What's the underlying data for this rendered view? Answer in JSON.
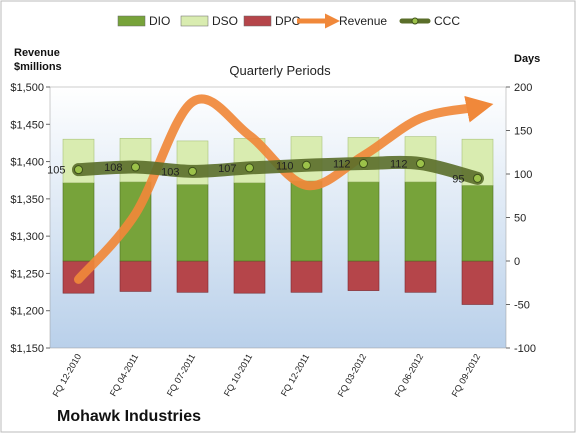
{
  "chart_data": {
    "type": "bar",
    "title": "",
    "subtitle": "Quarterly Periods",
    "company": "Mohawk Industries",
    "left_axis_label": "Revenue\n$millions",
    "right_axis_label": "Days",
    "categories": [
      "FQ 12-2010",
      "FQ 04-2011",
      "FQ 07-2011",
      "FQ 10-2011",
      "FQ 12-2011",
      "FQ 03-2012",
      "FQ 06-2012",
      "FQ 09-2012"
    ],
    "left_ylim": [
      1150,
      1500
    ],
    "left_ticks": [
      1150,
      1200,
      1250,
      1300,
      1350,
      1400,
      1450,
      1500
    ],
    "left_tick_labels": [
      "$1,150",
      "$1,200",
      "$1,250",
      "$1,300",
      "$1,350",
      "$1,400",
      "$1,450",
      "$1,500"
    ],
    "right_ylim": [
      -100,
      200
    ],
    "right_ticks": [
      -100,
      -50,
      0,
      50,
      100,
      150,
      200
    ],
    "right_tick_labels": [
      "-100",
      "-50",
      "0",
      "50",
      "100",
      "150",
      "200"
    ],
    "series": [
      {
        "name": "DIO",
        "axis": "right",
        "kind": "bar",
        "color": "#77a33a",
        "values": [
          90,
          91,
          88,
          90,
          92,
          91,
          91,
          87
        ]
      },
      {
        "name": "DSO",
        "axis": "right",
        "kind": "bar",
        "color": "#d9ecb0",
        "values": [
          50,
          50,
          50,
          51,
          51,
          51,
          52,
          53
        ]
      },
      {
        "name": "DPO",
        "axis": "right",
        "kind": "bar",
        "color": "#b5454a",
        "values": [
          -37,
          -35,
          -36,
          -37,
          -36,
          -34,
          -36,
          -50
        ]
      },
      {
        "name": "Revenue",
        "axis": "left",
        "kind": "line",
        "color": "#f0883a",
        "values": [
          1242,
          1330,
          1480,
          1435,
          1368,
          1408,
          1458,
          1473
        ]
      },
      {
        "name": "CCC",
        "axis": "right",
        "kind": "line",
        "color": "#5a6e2a",
        "values": [
          105,
          108,
          103,
          107,
          110,
          112,
          112,
          95
        ]
      }
    ],
    "data_labels": [
      "105",
      "108",
      "103",
      "107",
      "110",
      "112",
      "112",
      "95"
    ],
    "legend": {
      "position": "top",
      "items": [
        {
          "name": "DIO",
          "color": "#77a33a",
          "icon": "bar-swatch"
        },
        {
          "name": "DSO",
          "color": "#d9ecb0",
          "icon": "bar-swatch"
        },
        {
          "name": "DPO",
          "color": "#b5454a",
          "icon": "bar-swatch"
        },
        {
          "name": "Revenue",
          "color": "#f0883a",
          "icon": "arrow"
        },
        {
          "name": "CCC",
          "color": "#5a6e2a",
          "icon": "line-marker"
        }
      ]
    },
    "grid": false,
    "plot_background": [
      "#ffffff",
      "#b9d0ea"
    ]
  }
}
